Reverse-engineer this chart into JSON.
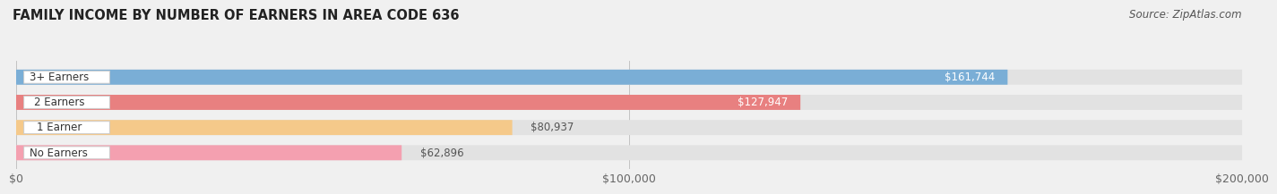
{
  "title": "FAMILY INCOME BY NUMBER OF EARNERS IN AREA CODE 636",
  "source": "Source: ZipAtlas.com",
  "categories": [
    "No Earners",
    "1 Earner",
    "2 Earners",
    "3+ Earners"
  ],
  "values": [
    62896,
    80937,
    127947,
    161744
  ],
  "bar_colors": [
    "#f4a0b0",
    "#f5c98a",
    "#e88080",
    "#7aaed6"
  ],
  "background_color": "#f0f0f0",
  "bar_bg_color": "#e2e2e2",
  "label_bg_color": "#ffffff",
  "xlim": [
    0,
    200000
  ],
  "xticks": [
    0,
    100000,
    200000
  ],
  "xtick_labels": [
    "$0",
    "$100,000",
    "$200,000"
  ],
  "value_labels": [
    "$62,896",
    "$80,937",
    "$127,947",
    "$161,744"
  ],
  "value_inside": [
    false,
    false,
    true,
    true
  ],
  "title_fontsize": 10.5,
  "source_fontsize": 8.5,
  "tick_fontsize": 9,
  "bar_label_fontsize": 8.5,
  "value_fontsize": 8.5
}
